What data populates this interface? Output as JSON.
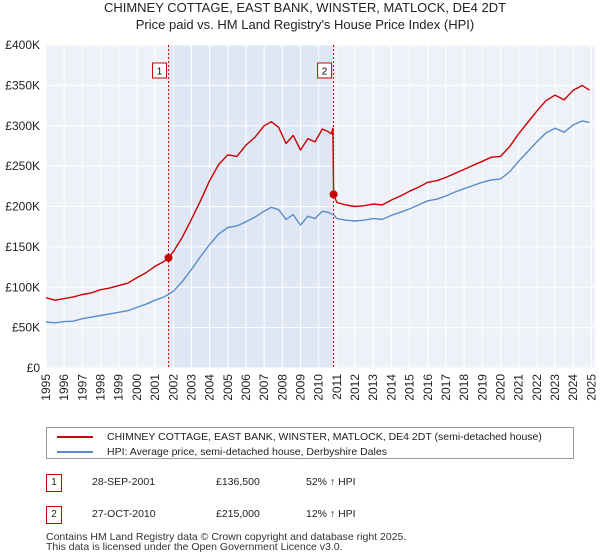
{
  "chart_data": {
    "type": "line",
    "title": "CHIMNEY COTTAGE, EAST BANK, WINSTER, MATLOCK, DE4 2DT",
    "subtitle": "Price paid vs. HM Land Registry's House Price Index (HPI)",
    "xlabel": "",
    "ylabel": "",
    "xlim": [
      1995.0,
      2025.2
    ],
    "ylim": [
      0,
      400000
    ],
    "y_tick_values": [
      0,
      50000,
      100000,
      150000,
      200000,
      250000,
      300000,
      350000,
      400000
    ],
    "y_tick_labels": [
      "£0",
      "£50K",
      "£100K",
      "£150K",
      "£200K",
      "£250K",
      "£300K",
      "£350K",
      "£400K"
    ],
    "x_tick_values": [
      1995,
      1996,
      1997,
      1998,
      1999,
      2000,
      2001,
      2002,
      2003,
      2004,
      2005,
      2006,
      2007,
      2008,
      2009,
      2010,
      2011,
      2012,
      2013,
      2014,
      2015,
      2016,
      2017,
      2018,
      2019,
      2020,
      2021,
      2022,
      2023,
      2024,
      2025
    ],
    "x_tick_labels": [
      "1995",
      "1996",
      "1997",
      "1998",
      "1999",
      "2000",
      "2001",
      "2002",
      "2003",
      "2004",
      "2005",
      "2006",
      "2007",
      "2008",
      "2009",
      "2010",
      "2011",
      "2012",
      "2013",
      "2014",
      "2015",
      "2016",
      "2017",
      "2018",
      "2019",
      "2020",
      "2021",
      "2022",
      "2023",
      "2024",
      "2025"
    ],
    "grid": true,
    "legend_position": "below",
    "shaded_period": [
      2001.74,
      2010.82
    ],
    "series": [
      {
        "name": "CHIMNEY COTTAGE, EAST BANK, WINSTER, MATLOCK, DE4 2DT (semi-detached house)",
        "color": "#cc0000",
        "x": [
          1995.0,
          1995.5,
          1996.0,
          1996.5,
          1997.0,
          1997.5,
          1998.0,
          1998.5,
          1999.0,
          1999.5,
          2000.0,
          2000.5,
          2001.0,
          2001.5,
          2001.74,
          2002.0,
          2002.5,
          2003.0,
          2003.5,
          2004.0,
          2004.5,
          2005.0,
          2005.5,
          2006.0,
          2006.5,
          2007.0,
          2007.4,
          2007.8,
          2008.2,
          2008.6,
          2009.0,
          2009.4,
          2009.8,
          2010.2,
          2010.5,
          2010.7,
          2010.78,
          2010.82,
          2011.0,
          2011.5,
          2012.0,
          2012.5,
          2013.0,
          2013.5,
          2014.0,
          2014.5,
          2015.0,
          2015.5,
          2016.0,
          2016.5,
          2017.0,
          2017.5,
          2018.0,
          2018.5,
          2019.0,
          2019.5,
          2020.0,
          2020.5,
          2021.0,
          2021.5,
          2022.0,
          2022.5,
          2023.0,
          2023.5,
          2024.0,
          2024.5,
          2024.9
        ],
        "values": [
          87000,
          84000,
          86000,
          88000,
          91000,
          93000,
          97000,
          99000,
          102000,
          105000,
          112000,
          118000,
          126000,
          132000,
          136500,
          144000,
          162000,
          184000,
          207000,
          232000,
          252000,
          264000,
          262000,
          276000,
          286000,
          300000,
          305000,
          298000,
          278000,
          288000,
          270000,
          284000,
          280000,
          296000,
          293000,
          290000,
          297000,
          215000,
          205000,
          202000,
          200000,
          201000,
          203000,
          202000,
          208000,
          213000,
          219000,
          224000,
          230000,
          232000,
          236000,
          241000,
          246000,
          251000,
          256000,
          261000,
          262000,
          274000,
          290000,
          304000,
          318000,
          331000,
          338000,
          332000,
          344000,
          350000,
          344000
        ]
      },
      {
        "name": "HPI: Average price, semi-detached house, Derbyshire Dales",
        "color": "#5a8cc8",
        "x": [
          1995.0,
          1995.5,
          1996.0,
          1996.5,
          1997.0,
          1997.5,
          1998.0,
          1998.5,
          1999.0,
          1999.5,
          2000.0,
          2000.5,
          2001.0,
          2001.5,
          2002.0,
          2002.5,
          2003.0,
          2003.5,
          2004.0,
          2004.5,
          2005.0,
          2005.5,
          2006.0,
          2006.5,
          2007.0,
          2007.4,
          2007.8,
          2008.2,
          2008.6,
          2009.0,
          2009.4,
          2009.8,
          2010.2,
          2010.5,
          2010.82,
          2011.0,
          2011.5,
          2012.0,
          2012.5,
          2013.0,
          2013.5,
          2014.0,
          2014.5,
          2015.0,
          2015.5,
          2016.0,
          2016.5,
          2017.0,
          2017.5,
          2018.0,
          2018.5,
          2019.0,
          2019.5,
          2020.0,
          2020.5,
          2021.0,
          2021.5,
          2022.0,
          2022.5,
          2023.0,
          2023.5,
          2024.0,
          2024.5,
          2024.9
        ],
        "values": [
          57000,
          56000,
          57500,
          58000,
          61000,
          63000,
          65000,
          67000,
          69000,
          71000,
          75000,
          79000,
          84000,
          88000,
          95000,
          107000,
          122000,
          138000,
          153000,
          166000,
          174000,
          176000,
          181000,
          187000,
          194000,
          199000,
          196000,
          184000,
          190000,
          177000,
          188000,
          185000,
          194000,
          193000,
          190000,
          185000,
          183000,
          182000,
          183000,
          185000,
          184000,
          189000,
          193000,
          197000,
          202000,
          207000,
          209000,
          213000,
          218000,
          222000,
          226000,
          230000,
          233000,
          234000,
          243000,
          256000,
          268000,
          280000,
          291000,
          297000,
          292000,
          301000,
          306000,
          304000
        ]
      }
    ],
    "markers": [
      {
        "label": "1",
        "x": 2001.74,
        "value": 136500,
        "series": 0,
        "color": "#cc0000"
      },
      {
        "label": "2",
        "x": 2010.82,
        "value": 215000,
        "series": 0,
        "color": "#cc0000"
      }
    ]
  },
  "transactions": [
    {
      "num": "1",
      "date": "28-SEP-2001",
      "price": "£136,500",
      "hpi": "52% ↑ HPI"
    },
    {
      "num": "2",
      "date": "27-OCT-2010",
      "price": "£215,000",
      "hpi": "12% ↑ HPI"
    }
  ],
  "footer": {
    "line1": "Contains HM Land Registry data © Crown copyright and database right 2025.",
    "line2": "This data is licensed under the Open Government Licence v3.0."
  }
}
